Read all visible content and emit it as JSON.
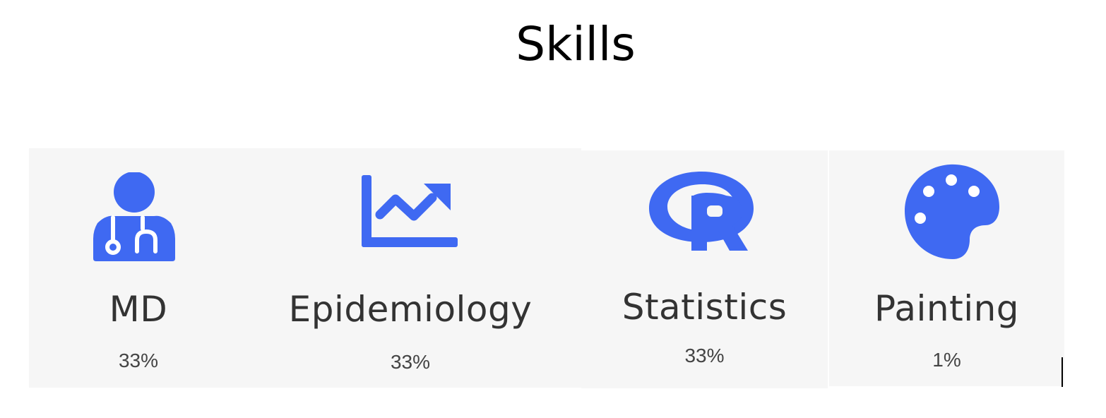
{
  "page": {
    "title": "Skills"
  },
  "skills": [
    {
      "label": "MD",
      "percent": "33%",
      "icon": "doctor-icon"
    },
    {
      "label": "Epidemiology",
      "percent": "33%",
      "icon": "trend-chart-icon"
    },
    {
      "label": "Statistics",
      "percent": "33%",
      "icon": "r-logo-icon"
    },
    {
      "label": "Painting",
      "percent": "1%",
      "icon": "palette-icon"
    }
  ],
  "colors": {
    "accent": "#3f69f2",
    "card_background": "#f6f6f6",
    "label_text": "#333333",
    "percent_text": "#444444"
  }
}
